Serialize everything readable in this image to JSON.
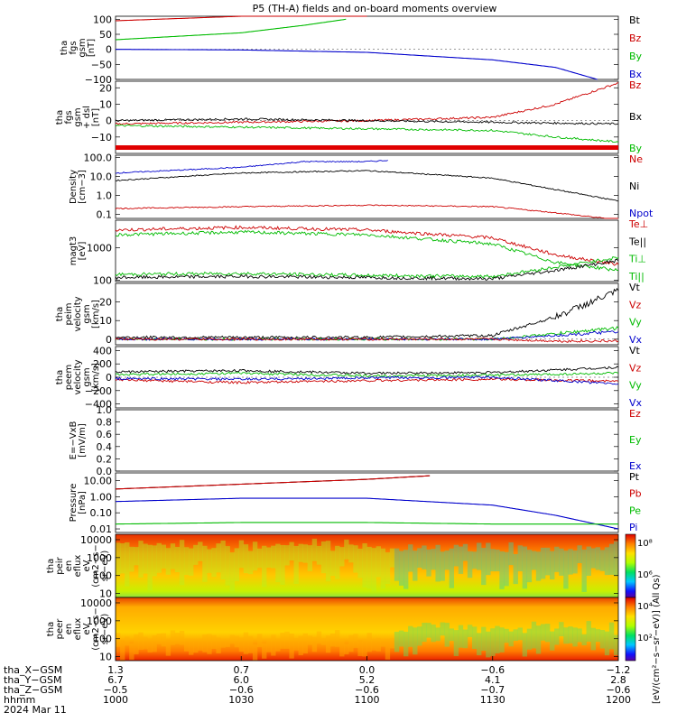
{
  "title": "P5 (TH-A) fields and on-board moments overview",
  "panels": [
    {
      "id": "fgs_gsm",
      "ylabel_lines": [
        "tha",
        "fgs",
        "gsm",
        "[nT]"
      ],
      "ticks": [
        {
          "v": 100,
          "t": "100"
        },
        {
          "v": 50,
          "t": "50"
        },
        {
          "v": 0,
          "t": "0"
        },
        {
          "v": -50,
          "t": "−50"
        },
        {
          "v": -100,
          "t": "−100"
        }
      ],
      "legend": [
        {
          "t": "Bt",
          "c": "#000000"
        },
        {
          "t": "Bz",
          "c": "#cc0000"
        },
        {
          "t": "By",
          "c": "#00bb00"
        },
        {
          "t": "Bx",
          "c": "#0000cc"
        }
      ]
    },
    {
      "id": "fgs_dsl",
      "ylabel_lines": [
        "tha",
        "fgs",
        "gsm",
        "+ dsl",
        "[nT]"
      ],
      "ticks": [
        {
          "v": 20,
          "t": "20"
        },
        {
          "v": 10,
          "t": "10"
        },
        {
          "v": 0,
          "t": "0"
        },
        {
          "v": -10,
          "t": "−10"
        }
      ],
      "legend": [
        {
          "t": "Bz",
          "c": "#cc0000"
        },
        {
          "t": "Bx",
          "c": "#000000"
        },
        {
          "t": "By",
          "c": "#00bb00"
        }
      ]
    },
    {
      "id": "density",
      "ylabel_lines": [
        "Density",
        "[cm−3]"
      ],
      "ticks": [
        {
          "v": 100,
          "t": "100.0"
        },
        {
          "v": 10,
          "t": "10.0"
        },
        {
          "v": 1,
          "t": "1.0"
        },
        {
          "v": 0.1,
          "t": "0.1"
        }
      ],
      "legend": [
        {
          "t": "Ne",
          "c": "#cc0000"
        },
        {
          "t": "Ni",
          "c": "#000000"
        },
        {
          "t": "Npot",
          "c": "#0000cc"
        }
      ]
    },
    {
      "id": "temperature",
      "ylabel_lines": [
        "magt3",
        "[eV]"
      ],
      "ticks": [
        {
          "v": 1000,
          "t": "1000"
        },
        {
          "v": 100,
          "t": "100"
        }
      ],
      "legend": [
        {
          "t": "Te⊥",
          "c": "#cc0000"
        },
        {
          "t": "Te||",
          "c": "#000000"
        },
        {
          "t": "Ti⊥",
          "c": "#00bb00"
        },
        {
          "t": "Ti||",
          "c": "#00bb00"
        }
      ]
    },
    {
      "id": "peim_velocity",
      "ylabel_lines": [
        "tha",
        "peim",
        "velocity",
        "gsm",
        "[km/s]"
      ],
      "ticks": [
        {
          "v": 20,
          "t": "20"
        },
        {
          "v": 10,
          "t": "10"
        },
        {
          "v": 0,
          "t": "0"
        }
      ],
      "legend": [
        {
          "t": "Vt",
          "c": "#000000"
        },
        {
          "t": "Vz",
          "c": "#cc0000"
        },
        {
          "t": "Vy",
          "c": "#00bb00"
        },
        {
          "t": "Vx",
          "c": "#0000cc"
        }
      ]
    },
    {
      "id": "peem_velocity",
      "ylabel_lines": [
        "tha",
        "peem",
        "velocity",
        "gsm",
        "[km/s]"
      ],
      "ticks": [
        {
          "v": 400,
          "t": "400"
        },
        {
          "v": 200,
          "t": "200"
        },
        {
          "v": 0,
          "t": "0"
        },
        {
          "v": -200,
          "t": "−200"
        },
        {
          "v": -400,
          "t": "−400"
        }
      ],
      "legend": [
        {
          "t": "Vt",
          "c": "#000000"
        },
        {
          "t": "Vz",
          "c": "#cc0000"
        },
        {
          "t": "Vy",
          "c": "#00bb00"
        },
        {
          "t": "Vx",
          "c": "#0000cc"
        }
      ]
    },
    {
      "id": "efield",
      "ylabel_lines": [
        "E=−VxB",
        "[mV/m]"
      ],
      "ticks": [
        {
          "v": 1.0,
          "t": "1.0"
        },
        {
          "v": 0.8,
          "t": "0.8"
        },
        {
          "v": 0.6,
          "t": "0.6"
        },
        {
          "v": 0.4,
          "t": "0.4"
        },
        {
          "v": 0.2,
          "t": "0.2"
        },
        {
          "v": 0.0,
          "t": "0.0"
        }
      ],
      "legend": [
        {
          "t": "Ez",
          "c": "#cc0000"
        },
        {
          "t": "Ey",
          "c": "#00bb00"
        },
        {
          "t": "Ex",
          "c": "#0000cc"
        }
      ]
    },
    {
      "id": "pressure",
      "ylabel_lines": [
        "Pressure",
        "[nPa]"
      ],
      "ticks": [
        {
          "v": 10,
          "t": "10.00"
        },
        {
          "v": 1,
          "t": "1.00"
        },
        {
          "v": 0.1,
          "t": "0.10"
        },
        {
          "v": 0.01,
          "t": "0.01"
        }
      ],
      "legend": [
        {
          "t": "Pt",
          "c": "#000000"
        },
        {
          "t": "Pb",
          "c": "#cc0000"
        },
        {
          "t": "Pe",
          "c": "#00bb00"
        },
        {
          "t": "Pi",
          "c": "#0000cc"
        }
      ]
    },
    {
      "id": "peir_spec",
      "ylabel_lines": [
        "tha",
        "peir",
        "en",
        "eflux",
        "eV",
        "(cm2−s−",
        "sr−eV)"
      ],
      "ticks": [
        {
          "v": 10000,
          "t": "10000"
        },
        {
          "v": 1000,
          "t": "1000"
        },
        {
          "v": 100,
          "t": "100"
        },
        {
          "v": 10,
          "t": "10"
        }
      ],
      "legend": []
    },
    {
      "id": "peer_spec",
      "ylabel_lines": [
        "tha",
        "peer",
        "en",
        "eflux",
        "eV",
        "(cm2−s−",
        "sr−eV)"
      ],
      "ticks": [
        {
          "v": 10000,
          "t": "10000"
        },
        {
          "v": 1000,
          "t": "1000"
        },
        {
          "v": 100,
          "t": "100"
        },
        {
          "v": 10,
          "t": "10"
        }
      ],
      "legend": []
    }
  ],
  "colorbar": {
    "ticks": [
      "10⁸",
      "10⁶",
      "10⁴",
      "10²"
    ],
    "label": "[eV/(cm²−s−sr−eV)] (All Qs)"
  },
  "xaxis": {
    "row_labels": [
      "tha_X−GSM",
      "tha_Y−GSM",
      "tha_Z−GSM",
      "hhmm",
      "2024 Mar 11"
    ],
    "columns": [
      {
        "x": "1.3",
        "y": "6.7",
        "z": "−0.5",
        "hhmm": "1000"
      },
      {
        "x": "0.7",
        "y": "6.0",
        "z": "−0.6",
        "hhmm": "1030"
      },
      {
        "x": "0.0",
        "y": "5.2",
        "z": "−0.6",
        "hhmm": "1100"
      },
      {
        "x": "−0.6",
        "y": "4.1",
        "z": "−0.7",
        "hhmm": "1130"
      },
      {
        "x": "−1.2",
        "y": "2.8",
        "z": "−0.6",
        "hhmm": "1200"
      }
    ]
  },
  "chart_data": {
    "type": "line",
    "title": "P5 (TH-A) fields and on-board moments overview",
    "x_time_hhmm": [
      "1000",
      "1030",
      "1100",
      "1130",
      "1200"
    ],
    "series": [
      {
        "panel": "fgs_gsm",
        "name": "Bz",
        "x": [
          "1000",
          "1030",
          "1045",
          "1100"
        ],
        "values": [
          95,
          110,
          130,
          150
        ]
      },
      {
        "panel": "fgs_gsm",
        "name": "By",
        "x": [
          "1000",
          "1030",
          "1045",
          "1055"
        ],
        "values": [
          32,
          55,
          80,
          100
        ]
      },
      {
        "panel": "fgs_gsm",
        "name": "Bx",
        "x": [
          "1000",
          "1030",
          "1100",
          "1130",
          "1145",
          "1155"
        ],
        "values": [
          0,
          -2,
          -10,
          -35,
          -60,
          -100
        ]
      },
      {
        "panel": "fgs_dsl",
        "name": "Bz",
        "x": [
          "1000",
          "1030",
          "1100",
          "1130",
          "1145",
          "1200"
        ],
        "values": [
          -2,
          -1,
          0,
          2,
          10,
          23
        ]
      },
      {
        "panel": "fgs_dsl",
        "name": "Bx",
        "x": [
          "1000",
          "1030",
          "1100",
          "1130",
          "1200"
        ],
        "values": [
          0,
          1,
          0,
          -1,
          -2
        ]
      },
      {
        "panel": "fgs_dsl",
        "name": "By",
        "x": [
          "1000",
          "1030",
          "1100",
          "1130",
          "1145",
          "1200"
        ],
        "values": [
          -3,
          -4,
          -5,
          -6,
          -10,
          -13
        ]
      },
      {
        "panel": "density",
        "name": "Ni",
        "x": [
          "1000",
          "1030",
          "1100",
          "1130",
          "1145",
          "1200"
        ],
        "values": [
          6,
          15,
          20,
          8,
          2,
          0.5
        ]
      },
      {
        "panel": "density",
        "name": "Npot",
        "x": [
          "1000",
          "1030",
          "1045",
          "1100",
          "1105"
        ],
        "values": [
          15,
          30,
          60,
          60,
          70
        ]
      },
      {
        "panel": "density",
        "name": "Ne",
        "x": [
          "1000",
          "1030",
          "1100",
          "1130",
          "1145",
          "1200"
        ],
        "values": [
          0.2,
          0.25,
          0.3,
          0.25,
          0.12,
          0.05
        ]
      },
      {
        "panel": "temperature",
        "name": "Te⊥",
        "x": [
          "1000",
          "1030",
          "1100",
          "1130",
          "1145",
          "1200"
        ],
        "values": [
          3500,
          4200,
          3500,
          2000,
          600,
          300
        ]
      },
      {
        "panel": "temperature",
        "name": "Ti⊥",
        "x": [
          "1000",
          "1030",
          "1100",
          "1130",
          "1145",
          "1200"
        ],
        "values": [
          2500,
          3000,
          2500,
          1300,
          350,
          200
        ]
      },
      {
        "panel": "temperature",
        "name": "Te||",
        "x": [
          "1000",
          "1030",
          "1100",
          "1130",
          "1145",
          "1200"
        ],
        "values": [
          120,
          130,
          120,
          110,
          200,
          400
        ]
      },
      {
        "panel": "temperature",
        "name": "Ti||",
        "x": [
          "1000",
          "1030",
          "1100",
          "1130",
          "1145",
          "1200"
        ],
        "values": [
          150,
          160,
          140,
          130,
          250,
          500
        ]
      },
      {
        "panel": "peim_velocity",
        "name": "Vt",
        "x": [
          "1000",
          "1030",
          "1100",
          "1130",
          "1145",
          "1200"
        ],
        "values": [
          1,
          1,
          1,
          2,
          12,
          26
        ]
      },
      {
        "panel": "peim_velocity",
        "name": "Vy",
        "x": [
          "1000",
          "1030",
          "1100",
          "1130",
          "1145",
          "1200"
        ],
        "values": [
          0,
          0,
          0,
          0,
          3,
          6
        ]
      },
      {
        "panel": "peim_velocity",
        "name": "Vx",
        "x": [
          "1000",
          "1030",
          "1100",
          "1130",
          "1145",
          "1200"
        ],
        "values": [
          0,
          0,
          0,
          0,
          2,
          4
        ]
      },
      {
        "panel": "peim_velocity",
        "name": "Vz",
        "x": [
          "1000",
          "1030",
          "1100",
          "1130",
          "1145",
          "1200"
        ],
        "values": [
          0,
          0,
          0,
          0,
          -1,
          -1
        ]
      },
      {
        "panel": "peem_velocity",
        "name": "Vt",
        "x": [
          "1000",
          "1030",
          "1100",
          "1130",
          "1200"
        ],
        "values": [
          80,
          100,
          60,
          70,
          150
        ]
      },
      {
        "panel": "peem_velocity",
        "name": "Vy",
        "x": [
          "1000",
          "1030",
          "1100",
          "1130",
          "1200"
        ],
        "values": [
          40,
          60,
          20,
          30,
          60
        ]
      },
      {
        "panel": "peem_velocity",
        "name": "Vz",
        "x": [
          "1000",
          "1030",
          "1100",
          "1130",
          "1200"
        ],
        "values": [
          -40,
          -80,
          -50,
          -30,
          -60
        ]
      },
      {
        "panel": "peem_velocity",
        "name": "Vx",
        "x": [
          "1000",
          "1030",
          "1100",
          "1130",
          "1200"
        ],
        "values": [
          -20,
          -30,
          -10,
          0,
          -100
        ]
      },
      {
        "panel": "pressure",
        "name": "Pt",
        "x": [
          "1000",
          "1030",
          "1100",
          "1115"
        ],
        "values": [
          3,
          6,
          12,
          20
        ]
      },
      {
        "panel": "pressure",
        "name": "Pb",
        "x": [
          "1000",
          "1030",
          "1100",
          "1115"
        ],
        "values": [
          3,
          6,
          12,
          20
        ]
      },
      {
        "panel": "pressure",
        "name": "Pi",
        "x": [
          "1000",
          "1030",
          "1100",
          "1130",
          "1145",
          "1200"
        ],
        "values": [
          0.5,
          0.8,
          0.8,
          0.3,
          0.07,
          0.01
        ]
      },
      {
        "panel": "pressure",
        "name": "Pe",
        "x": [
          "1000",
          "1030",
          "1100",
          "1130",
          "1200"
        ],
        "values": [
          0.02,
          0.025,
          0.025,
          0.02,
          0.02
        ]
      }
    ]
  }
}
